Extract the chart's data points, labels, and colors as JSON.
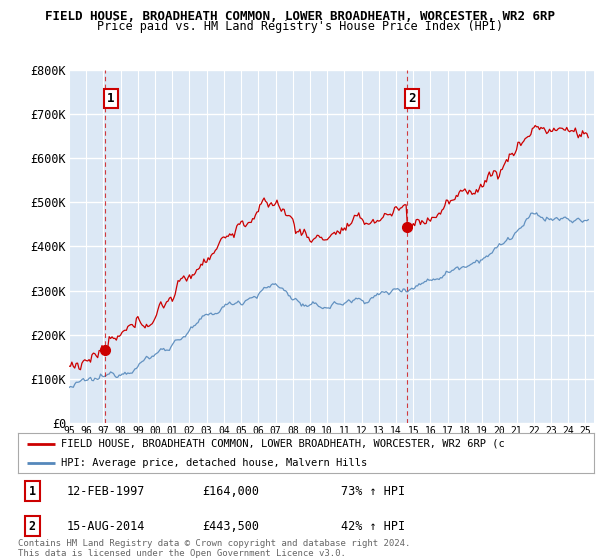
{
  "title_line1": "FIELD HOUSE, BROADHEATH COMMON, LOWER BROADHEATH, WORCESTER, WR2 6RP",
  "title_line2": "Price paid vs. HM Land Registry's House Price Index (HPI)",
  "legend_red": "FIELD HOUSE, BROADHEATH COMMON, LOWER BROADHEATH, WORCESTER, WR2 6RP (c",
  "legend_blue": "HPI: Average price, detached house, Malvern Hills",
  "footer": "Contains HM Land Registry data © Crown copyright and database right 2024.\nThis data is licensed under the Open Government Licence v3.0.",
  "sale1_date": "12-FEB-1997",
  "sale1_price": 164000,
  "sale1_hpi": "73% ↑ HPI",
  "sale1_year": 1997.12,
  "sale2_date": "15-AUG-2014",
  "sale2_price": 443500,
  "sale2_hpi": "42% ↑ HPI",
  "sale2_year": 2014.62,
  "ylim": [
    0,
    800000
  ],
  "xlim_start": 1995.0,
  "xlim_end": 2025.5,
  "yticks": [
    0,
    100000,
    200000,
    300000,
    400000,
    500000,
    600000,
    700000,
    800000
  ],
  "ytick_labels": [
    "£0",
    "£100K",
    "£200K",
    "£300K",
    "£400K",
    "£500K",
    "£600K",
    "£700K",
    "£800K"
  ],
  "xticks": [
    1995,
    1996,
    1997,
    1998,
    1999,
    2000,
    2001,
    2002,
    2003,
    2004,
    2005,
    2006,
    2007,
    2008,
    2009,
    2010,
    2011,
    2012,
    2013,
    2014,
    2015,
    2016,
    2017,
    2018,
    2019,
    2020,
    2021,
    2022,
    2023,
    2024,
    2025
  ],
  "background_color": "#dce8f5",
  "grid_color": "#ffffff",
  "red_color": "#cc0000",
  "blue_color": "#5588bb",
  "dashed_color": "#cc0000"
}
